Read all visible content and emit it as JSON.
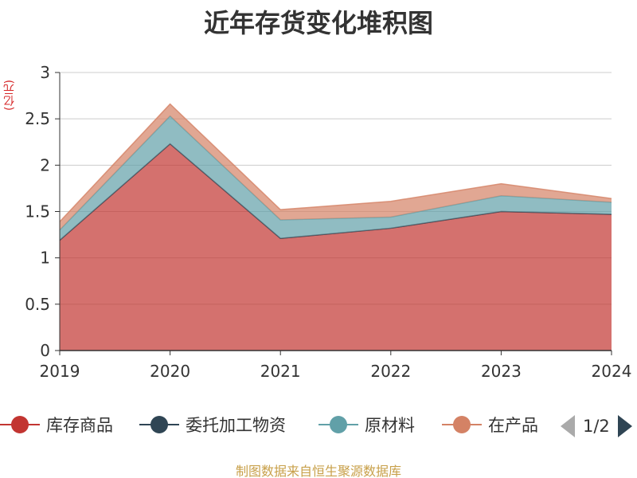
{
  "chart_data": {
    "type": "area",
    "stacked": true,
    "title": "近年存货变化堆积图",
    "ylabel": "(亿元)",
    "x": [
      "2019",
      "2020",
      "2021",
      "2022",
      "2023",
      "2024"
    ],
    "ylim": [
      0,
      3
    ],
    "yticks": [
      "0",
      "0.5",
      "1",
      "1.5",
      "2",
      "2.5",
      "3"
    ],
    "grid": true,
    "legend_position": "bottom",
    "series": [
      {
        "name": "库存商品",
        "color": "#c23531",
        "values": [
          1.19,
          2.23,
          1.21,
          1.32,
          1.5,
          1.47
        ]
      },
      {
        "name": "委托加工物资",
        "color": "#2f4554",
        "values": [
          0.0,
          0.0,
          0.0,
          0.0,
          0.0,
          0.0
        ]
      },
      {
        "name": "原材料",
        "color": "#61a0a8",
        "values": [
          0.11,
          0.3,
          0.2,
          0.12,
          0.17,
          0.13
        ]
      },
      {
        "name": "在产品",
        "color": "#d48265",
        "values": [
          0.09,
          0.13,
          0.11,
          0.17,
          0.13,
          0.04
        ]
      }
    ]
  },
  "legend": {
    "pager": "1/2"
  },
  "source": "制图数据来自恒生聚源数据库"
}
